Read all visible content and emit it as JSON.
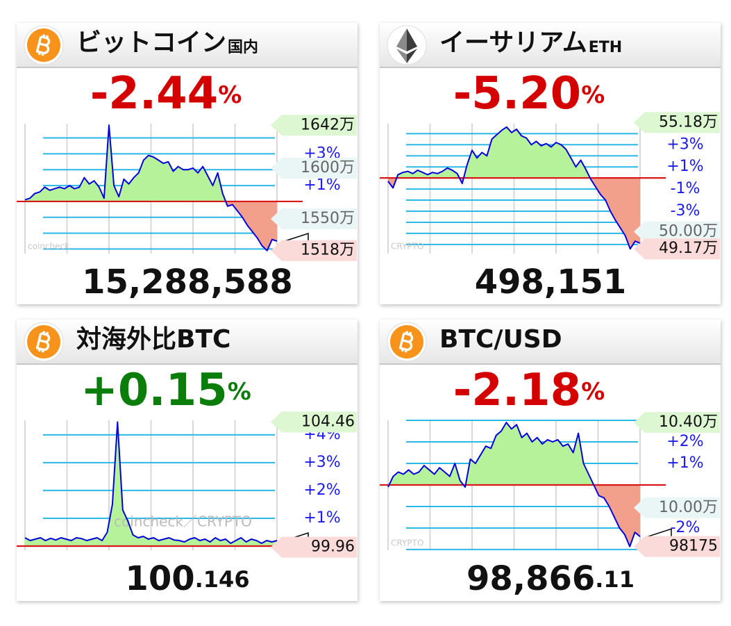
{
  "chart_data": [
    {
      "type": "line",
      "title": "ビットコイン",
      "title_suffix": "国内",
      "icon": "bitcoin",
      "change": {
        "value": -2.44,
        "label": "-2.44"
      },
      "change_unit": "%",
      "price": "15,288,588",
      "watermark": "coincheck",
      "ylim": [
        -3.2,
        4.9
      ],
      "gridlines": [
        4,
        3,
        2,
        1,
        -1,
        -2,
        -3
      ],
      "yticks": [
        {
          "value": 3,
          "label": "+3%"
        },
        {
          "value": 1,
          "label": "+1%"
        }
      ],
      "price_labels": [
        {
          "value": 4.8,
          "label": "1642万"
        },
        {
          "value": 2.1,
          "label": "1600万"
        },
        {
          "value": -1.1,
          "label": "1550万"
        },
        {
          "value": -3.1,
          "label": "1518万"
        }
      ],
      "values": [
        0.1,
        0.2,
        0.5,
        0.6,
        0.9,
        0.7,
        0.8,
        0.9,
        0.8,
        1.0,
        0.8,
        0.9,
        1.5,
        1.1,
        1.3,
        0.9,
        0.2,
        4.8,
        1.0,
        0.3,
        1.4,
        1.1,
        1.5,
        1.8,
        2.6,
        2.9,
        2.8,
        2.6,
        2.4,
        2.5,
        1.9,
        2.2,
        2.0,
        2.0,
        2.1,
        1.8,
        2.2,
        1.6,
        1.0,
        1.8,
        0.5,
        -0.3,
        -0.2,
        -0.6,
        -1.0,
        -1.5,
        -1.9,
        -2.3,
        -2.8,
        -3.1,
        -2.4,
        -2.5
      ]
    },
    {
      "type": "line",
      "title": "イーサリアム",
      "title_suffix": "ETH",
      "icon": "ethereum",
      "change": {
        "value": -5.2,
        "label": "-5.20"
      },
      "change_unit": "%",
      "price": "498,151",
      "watermark": "CRYPTO",
      "ylim": [
        -6.7,
        4.9
      ],
      "gridlines": [
        4,
        3,
        2,
        1,
        -1,
        -2,
        -3,
        -4,
        -5,
        -6
      ],
      "yticks": [
        {
          "value": 3,
          "label": "+3%"
        },
        {
          "value": 1,
          "label": "+1%"
        },
        {
          "value": -1,
          "label": "-1%"
        },
        {
          "value": -3,
          "label": "-3%"
        }
      ],
      "price_labels": [
        {
          "value": 5.0,
          "label": "55.18万"
        },
        {
          "value": -4.85,
          "label": "50.00万"
        },
        {
          "value": -6.4,
          "label": "49.17万"
        }
      ],
      "values": [
        -0.3,
        -0.9,
        0.3,
        0.5,
        0.6,
        0.4,
        0.7,
        0.5,
        0.3,
        0.5,
        0.4,
        0.6,
        0.9,
        0.7,
        0.4,
        -0.5,
        1.2,
        2.5,
        1.8,
        2.3,
        2.0,
        3.5,
        3.9,
        4.3,
        4.6,
        4.1,
        4.4,
        3.8,
        3.6,
        3.0,
        3.3,
        2.9,
        3.1,
        2.8,
        3.2,
        3.0,
        2.6,
        1.8,
        1.0,
        1.6,
        0.8,
        -0.1,
        -0.8,
        -1.5,
        -2.0,
        -3.0,
        -3.8,
        -4.5,
        -5.2,
        -6.4,
        -5.7,
        -5.9
      ]
    },
    {
      "type": "line",
      "title": "対海外比BTC",
      "icon": "bitcoin",
      "change": {
        "value": 0.15,
        "label": "+0.15"
      },
      "change_unit": "%",
      "price": "100",
      "price_decimals": ".146",
      "watermark": "coincheck／CRYPTO",
      "ylim": [
        -0.1,
        4.52
      ],
      "gridlines": [
        4,
        3,
        2,
        1
      ],
      "yticks": [
        {
          "value": 4,
          "label": "+4%"
        },
        {
          "value": 3,
          "label": "+3%"
        },
        {
          "value": 2,
          "label": "+2%"
        },
        {
          "value": 1,
          "label": "+1%"
        }
      ],
      "price_labels": [
        {
          "value": 4.46,
          "label": "104.46"
        },
        {
          "value": -0.04,
          "label": "99.96"
        }
      ],
      "values": [
        0.3,
        0.2,
        0.25,
        0.3,
        0.2,
        0.28,
        0.22,
        0.3,
        0.25,
        0.2,
        0.3,
        0.27,
        0.2,
        0.25,
        0.3,
        0.2,
        0.5,
        1.5,
        4.46,
        1.3,
        0.9,
        0.4,
        0.3,
        0.35,
        0.25,
        0.3,
        0.2,
        0.25,
        0.3,
        0.22,
        0.2,
        0.15,
        0.25,
        0.3,
        0.2,
        0.25,
        0.15,
        0.3,
        0.2,
        0.25,
        0.1,
        0.2,
        0.3,
        0.15,
        0.25,
        0.2,
        0.1,
        0.2,
        0.15,
        0.2
      ]
    },
    {
      "type": "line",
      "title": "BTC/USD",
      "icon": "bitcoin",
      "change": {
        "value": -2.18,
        "label": "-2.18"
      },
      "change_unit": "%",
      "price": "98,866",
      "price_decimals": ".11",
      "watermark": "CRYPTO",
      "ylim": [
        -2.97,
        3.0
      ],
      "gridlines": [
        3,
        2,
        1,
        -1,
        -2,
        -3
      ],
      "yticks": [
        {
          "value": 2,
          "label": "+2%"
        },
        {
          "value": 1,
          "label": "+1%"
        },
        {
          "value": -2,
          "label": "-2%"
        }
      ],
      "price_labels": [
        {
          "value": 2.9,
          "label": "10.40万"
        },
        {
          "value": -1.06,
          "label": "10.00万"
        },
        {
          "value": -2.86,
          "label": "98175"
        }
      ],
      "values": [
        -0.1,
        0.4,
        0.6,
        0.5,
        0.7,
        0.5,
        0.6,
        0.9,
        0.7,
        0.5,
        0.8,
        0.6,
        0.4,
        1.0,
        0.2,
        -0.1,
        1.2,
        1.0,
        1.4,
        1.8,
        1.7,
        2.3,
        2.5,
        2.9,
        2.6,
        2.8,
        2.2,
        2.4,
        2.0,
        2.2,
        1.9,
        2.1,
        2.0,
        2.1,
        1.8,
        1.9,
        1.5,
        2.4,
        1.0,
        0.5,
        0.0,
        -0.5,
        -0.6,
        -1.0,
        -1.5,
        -2.0,
        -2.3,
        -2.86,
        -2.2,
        -2.4
      ]
    }
  ]
}
